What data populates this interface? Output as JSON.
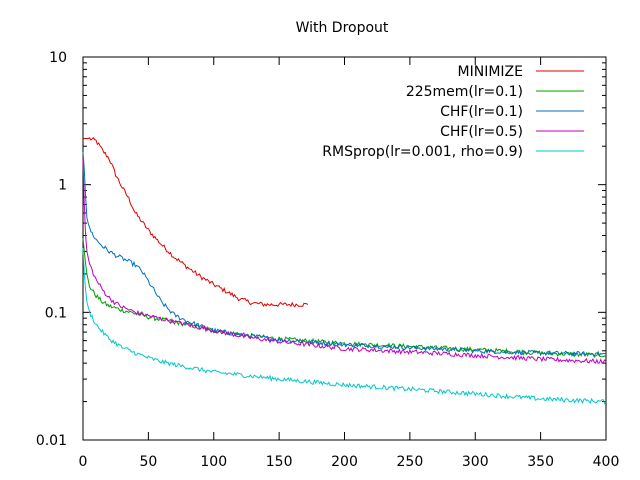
{
  "chart_data": {
    "type": "line",
    "title": "With Dropout",
    "xlabel": "",
    "ylabel": "",
    "xlim": [
      0,
      400
    ],
    "ylim": [
      0.01,
      10
    ],
    "yscale": "log",
    "grid": false,
    "legend_position": "top-right",
    "x_ticks": [
      0,
      50,
      100,
      150,
      200,
      250,
      300,
      350,
      400
    ],
    "x_tick_labels": [
      "0",
      "50",
      "100",
      "150",
      "200",
      "250",
      "300",
      "350",
      "400"
    ],
    "y_ticks": [
      0.01,
      0.1,
      1,
      10
    ],
    "y_tick_labels": [
      "0.01",
      "0.1",
      "1",
      "10"
    ],
    "series": [
      {
        "name": "MINIMIZE",
        "color": "#e00000",
        "x": [
          0,
          5,
          10,
          15,
          20,
          25,
          30,
          35,
          40,
          50,
          60,
          70,
          80,
          90,
          100,
          110,
          120,
          130,
          140,
          150,
          160,
          172
        ],
        "y": [
          2.3,
          2.3,
          2.2,
          1.85,
          1.6,
          1.2,
          0.95,
          0.78,
          0.6,
          0.44,
          0.34,
          0.27,
          0.225,
          0.19,
          0.165,
          0.145,
          0.127,
          0.118,
          0.115,
          0.115,
          0.115,
          0.115
        ]
      },
      {
        "name": "225mem(lr=0.1)",
        "color": "#00a000",
        "x": [
          0,
          1,
          2,
          3,
          5,
          10,
          15,
          20,
          30,
          40,
          50,
          75,
          100,
          125,
          150,
          200,
          250,
          300,
          350,
          400
        ],
        "y": [
          0.38,
          0.3,
          0.24,
          0.2,
          0.16,
          0.135,
          0.12,
          0.112,
          0.104,
          0.098,
          0.092,
          0.082,
          0.072,
          0.066,
          0.062,
          0.057,
          0.054,
          0.051,
          0.048,
          0.046
        ]
      },
      {
        "name": "CHF(lr=0.1)",
        "color": "#0070c0",
        "x": [
          0,
          1,
          2,
          3,
          5,
          8,
          10,
          15,
          20,
          25,
          30,
          35,
          40,
          45,
          50,
          55,
          60,
          70,
          80,
          90,
          100,
          125,
          150,
          200,
          250,
          300,
          350,
          400
        ],
        "y": [
          1.8,
          1.3,
          0.8,
          0.55,
          0.45,
          0.4,
          0.37,
          0.33,
          0.3,
          0.28,
          0.265,
          0.25,
          0.235,
          0.21,
          0.175,
          0.145,
          0.12,
          0.095,
          0.085,
          0.078,
          0.072,
          0.066,
          0.061,
          0.056,
          0.053,
          0.05,
          0.048,
          0.047
        ]
      },
      {
        "name": "CHF(lr=0.5)",
        "color": "#c000c0",
        "x": [
          0,
          1,
          2,
          3,
          5,
          8,
          10,
          15,
          20,
          25,
          30,
          40,
          50,
          75,
          100,
          125,
          150,
          200,
          250,
          300,
          350,
          400
        ],
        "y": [
          1.6,
          0.7,
          0.4,
          0.3,
          0.24,
          0.2,
          0.18,
          0.15,
          0.13,
          0.118,
          0.11,
          0.1,
          0.094,
          0.082,
          0.072,
          0.064,
          0.059,
          0.052,
          0.049,
          0.046,
          0.043,
          0.041
        ]
      },
      {
        "name": "RMSprop(lr=0.001, rho=0.9)",
        "color": "#00c8c8",
        "x": [
          0,
          1,
          2,
          3,
          5,
          8,
          10,
          15,
          20,
          30,
          40,
          50,
          60,
          75,
          100,
          125,
          150,
          200,
          250,
          300,
          350,
          400
        ],
        "y": [
          0.32,
          0.2,
          0.15,
          0.12,
          0.1,
          0.088,
          0.08,
          0.07,
          0.062,
          0.053,
          0.048,
          0.044,
          0.041,
          0.038,
          0.034,
          0.032,
          0.03,
          0.027,
          0.025,
          0.023,
          0.021,
          0.02
        ]
      }
    ]
  }
}
